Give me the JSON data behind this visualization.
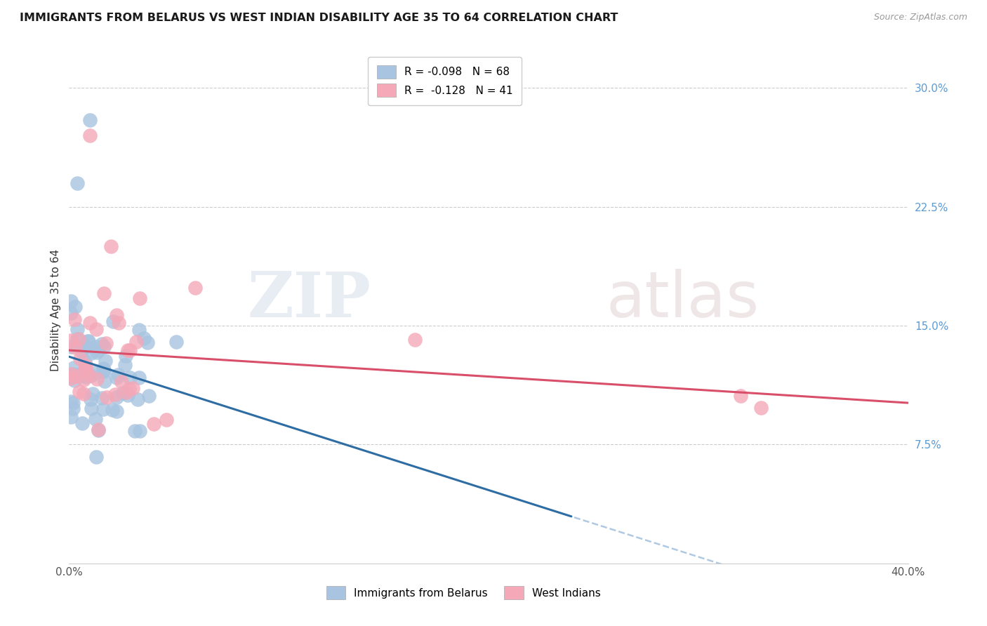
{
  "title": "IMMIGRANTS FROM BELARUS VS WEST INDIAN DISABILITY AGE 35 TO 64 CORRELATION CHART",
  "source": "Source: ZipAtlas.com",
  "ylabel": "Disability Age 35 to 64",
  "xlim": [
    0.0,
    0.4
  ],
  "ylim": [
    0.0,
    0.32
  ],
  "yticks": [
    0.075,
    0.15,
    0.225,
    0.3
  ],
  "ytick_labels": [
    "7.5%",
    "15.0%",
    "22.5%",
    "30.0%"
  ],
  "blue_scatter_color": "#a8c4e0",
  "pink_scatter_color": "#f4a8b8",
  "blue_line_color": "#2e6ca4",
  "pink_line_color": "#d94f6a",
  "blue_label": "Immigrants from Belarus",
  "pink_label": "West Indians",
  "legend_r_blue": "-0.098",
  "legend_n_blue": "68",
  "legend_r_pink": "-0.128",
  "legend_n_pink": "41"
}
